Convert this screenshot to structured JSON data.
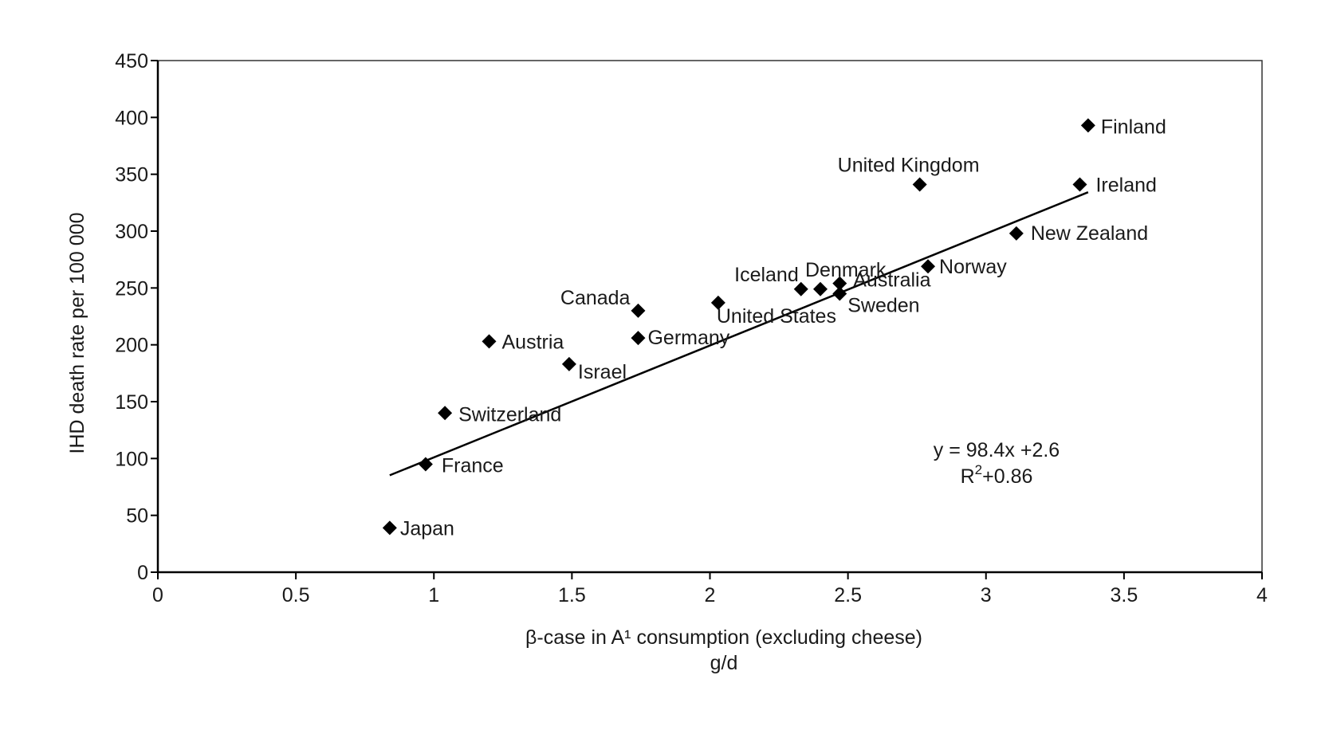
{
  "chart_data": {
    "type": "scatter",
    "title": "",
    "xlabel": "β-case in A¹ consumption (excluding cheese)",
    "xlabel_line2": "g/d",
    "ylabel": "IHD death rate per 100 000",
    "xlim": [
      0,
      4
    ],
    "ylim": [
      0,
      450
    ],
    "xticks": [
      0,
      0.5,
      1,
      1.5,
      2,
      2.5,
      3,
      3.5,
      4
    ],
    "xtick_labels": [
      "0",
      "0.5",
      "1",
      "1.5",
      "2",
      "2.5",
      "3",
      "3.5",
      "4"
    ],
    "yticks": [
      0,
      50,
      100,
      150,
      200,
      250,
      300,
      350,
      400,
      450
    ],
    "ytick_labels": [
      "0",
      "50",
      "100",
      "150",
      "200",
      "250",
      "300",
      "350",
      "400",
      "450"
    ],
    "marker": "diamond",
    "marker_color": "#000000",
    "grid": false,
    "points": [
      {
        "label": "Japan",
        "x": 0.84,
        "y": 39
      },
      {
        "label": "France",
        "x": 0.97,
        "y": 95
      },
      {
        "label": "Switzerland",
        "x": 1.04,
        "y": 140
      },
      {
        "label": "Austria",
        "x": 1.2,
        "y": 203
      },
      {
        "label": "Israel",
        "x": 1.49,
        "y": 183
      },
      {
        "label": "Canada",
        "x": 1.74,
        "y": 230
      },
      {
        "label": "Germany",
        "x": 1.74,
        "y": 206
      },
      {
        "label": "United States",
        "x": 2.03,
        "y": 237
      },
      {
        "label": "Iceland",
        "x": 2.33,
        "y": 249
      },
      {
        "label": "Denmark",
        "x": 2.4,
        "y": 249
      },
      {
        "label": "Australia",
        "x": 2.47,
        "y": 254
      },
      {
        "label": "Sweden",
        "x": 2.47,
        "y": 245
      },
      {
        "label": "Norway",
        "x": 2.79,
        "y": 269
      },
      {
        "label": "United Kingdom",
        "x": 2.76,
        "y": 341
      },
      {
        "label": "New Zealand",
        "x": 3.11,
        "y": 298
      },
      {
        "label": "Ireland",
        "x": 3.34,
        "y": 341
      },
      {
        "label": "Finland",
        "x": 3.37,
        "y": 393
      }
    ],
    "trendline": {
      "slope": 98.4,
      "intercept": 2.6,
      "x_start": 0.84,
      "x_end": 3.37
    },
    "annotation": {
      "line1": "y = 98.4x +2.6",
      "line2_prefix": "R",
      "line2_sup": "2",
      "line2_suffix": "+0.86"
    }
  }
}
